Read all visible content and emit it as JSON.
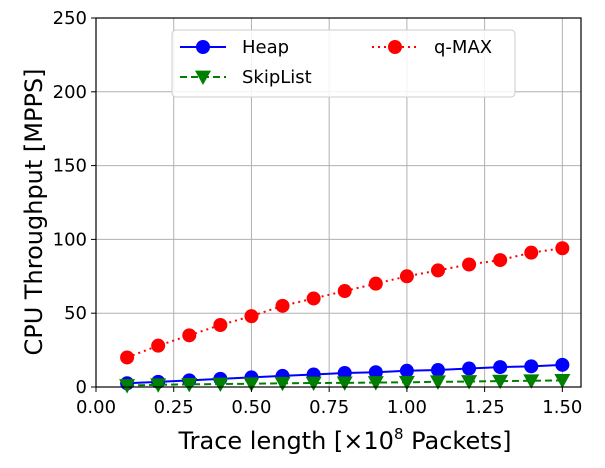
{
  "chart_data": {
    "type": "line",
    "title": "",
    "xlabel_prefix": "Trace length [×10",
    "xlabel_exp": "8",
    "xlabel_suffix": " Packets]",
    "ylabel": "CPU Throughput [MPPS]",
    "xlim": [
      0.0,
      1.56
    ],
    "ylim": [
      0,
      250
    ],
    "x_ticks": [
      0.0,
      0.25,
      0.5,
      0.75,
      1.0,
      1.25,
      1.5
    ],
    "x_tick_labels": [
      "0.00",
      "0.25",
      "0.50",
      "0.75",
      "1.00",
      "1.25",
      "1.50"
    ],
    "y_ticks": [
      0,
      50,
      100,
      150,
      200,
      250
    ],
    "y_tick_labels": [
      "0",
      "50",
      "100",
      "150",
      "200",
      "250"
    ],
    "grid": true,
    "legend_position": "top-center",
    "x": [
      0.1,
      0.2,
      0.3,
      0.4,
      0.5,
      0.6,
      0.7,
      0.8,
      0.9,
      1.0,
      1.1,
      1.2,
      1.3,
      1.4,
      1.5
    ],
    "series": [
      {
        "name": "Heap",
        "color": "#0000ff",
        "marker": "circle",
        "line_style": "solid",
        "values": [
          2.5,
          3.5,
          4.5,
          5.5,
          6.5,
          7.5,
          8.5,
          9.5,
          10.0,
          11.0,
          11.5,
          12.5,
          13.5,
          14.0,
          15.0
        ]
      },
      {
        "name": "SkipList",
        "color": "#008000",
        "marker": "triangle-down",
        "line_style": "dashed",
        "values": [
          1.0,
          1.5,
          1.8,
          2.0,
          2.2,
          2.5,
          2.7,
          2.8,
          3.0,
          3.2,
          3.5,
          3.7,
          4.0,
          4.2,
          4.5
        ]
      },
      {
        "name": "q-MAX",
        "color": "#ff0000",
        "marker": "circle",
        "line_style": "dotted",
        "values": [
          20,
          28,
          35,
          42,
          48,
          55,
          60,
          65,
          70,
          75,
          79,
          83,
          86,
          91,
          94
        ]
      }
    ]
  }
}
